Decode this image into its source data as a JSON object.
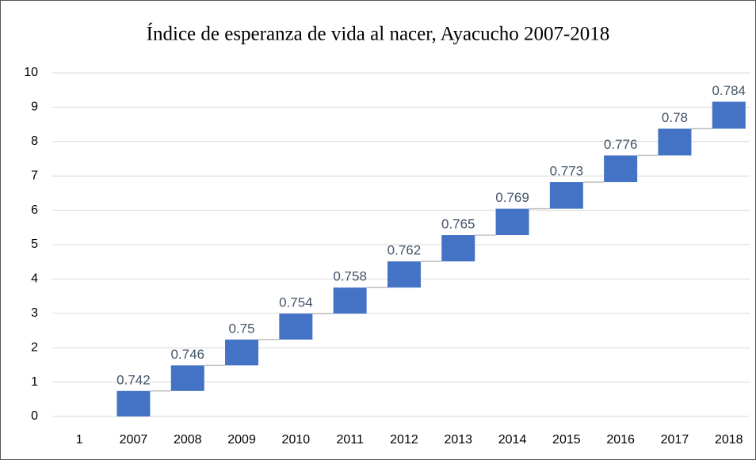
{
  "chart_data": {
    "type": "waterfall",
    "title": "Índice de esperanza de vida al nacer, Ayacucho 2007-2018",
    "categories": [
      "1",
      "2007",
      "2008",
      "2009",
      "2010",
      "2011",
      "2012",
      "2013",
      "2014",
      "2015",
      "2016",
      "2017",
      "2018"
    ],
    "values": [
      null,
      0.742,
      0.746,
      0.75,
      0.754,
      0.758,
      0.762,
      0.765,
      0.769,
      0.773,
      0.776,
      0.78,
      0.784
    ],
    "color": "#4472c4",
    "ylim": [
      0,
      10
    ],
    "yticks": [
      0,
      1,
      2,
      3,
      4,
      5,
      6,
      7,
      8,
      9,
      10
    ],
    "grid": true
  }
}
